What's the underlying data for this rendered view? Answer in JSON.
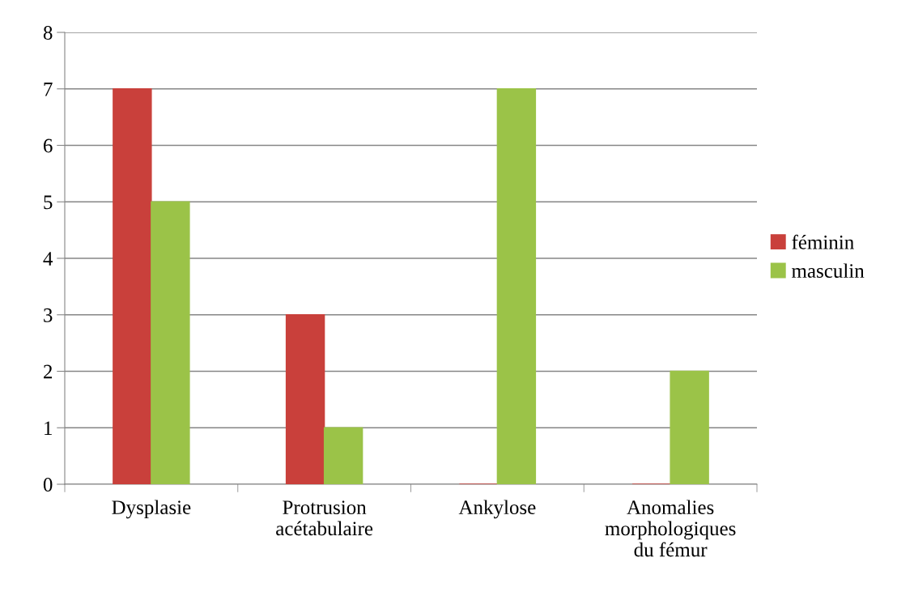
{
  "chart_data": {
    "type": "bar",
    "categories": [
      "Dysplasie",
      "Protrusion\nacétabulaire",
      "Ankylose",
      "Anomalies\nmorphologiques\ndu fémur"
    ],
    "series": [
      {
        "name": "féminin",
        "color": "#c9403b",
        "values": [
          7,
          3,
          0,
          0
        ]
      },
      {
        "name": "masculin",
        "color": "#9bc348",
        "values": [
          5,
          1,
          7,
          2
        ]
      }
    ],
    "ylim": [
      0,
      8
    ],
    "yticks": [
      0,
      1,
      2,
      3,
      4,
      5,
      6,
      7,
      8
    ],
    "grid": "y",
    "legend": "right"
  }
}
